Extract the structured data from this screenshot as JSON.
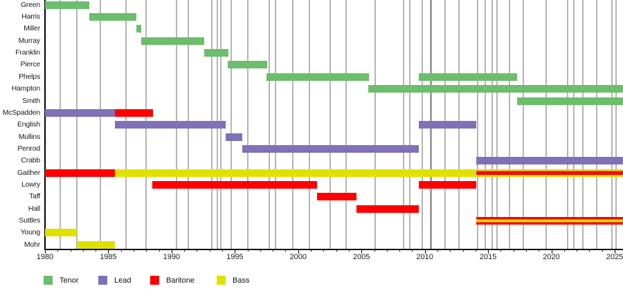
{
  "chart_data": {
    "type": "bar",
    "subtype": "gantt-timeline",
    "title": "",
    "xlabel": "",
    "ylabel": "",
    "x_axis": {
      "min": 1980,
      "max": 2025.7,
      "major_ticks": [
        1980,
        1985,
        1990,
        1995,
        2000,
        2005,
        2010,
        2015,
        2020,
        2025
      ],
      "minor_tick_step": 1
    },
    "legend": [
      {
        "label": "Tenor",
        "part": "tenor"
      },
      {
        "label": "Lead",
        "part": "lead"
      },
      {
        "label": "Baritone",
        "part": "baritone"
      },
      {
        "label": "Bass",
        "part": "bass"
      }
    ],
    "part_colors": {
      "tenor": "#6cbe6c",
      "lead": "#8070b8",
      "baritone": "#fd0000",
      "bass": "#e1e100"
    },
    "grid_color": "#b4b4b4",
    "thick_grid_color": "#9e9e9e",
    "gridline_years": [
      1981.2,
      1982.5,
      1984.4,
      1986.4,
      1988.0,
      1990.4,
      1991.3,
      1993.2,
      1993.6,
      1993.9,
      1994.7,
      1996.0,
      1997.7,
      1998.2,
      1999.6,
      2000.9,
      2002.5,
      2003.8,
      2006.1,
      2008.3,
      2008.8,
      2009.8,
      2011.6,
      2012.7,
      2014.2,
      2014.8,
      2015.3,
      2015.7,
      2016.7,
      2017.8,
      2019.6,
      2021.3,
      2021.8,
      2022.5,
      2023.6,
      2024.8,
      2025.1
    ],
    "thick_gridline_year": 2010.5,
    "members": [
      {
        "name": "Green",
        "segments": [
          {
            "start": 1980.0,
            "end": 1983.5,
            "parts": [
              "tenor"
            ]
          }
        ]
      },
      {
        "name": "Harris",
        "segments": [
          {
            "start": 1983.5,
            "end": 1987.2,
            "parts": [
              "tenor"
            ]
          }
        ]
      },
      {
        "name": "Miller",
        "segments": [
          {
            "start": 1987.2,
            "end": 1987.6,
            "parts": [
              "tenor"
            ]
          }
        ]
      },
      {
        "name": "Murray",
        "segments": [
          {
            "start": 1987.6,
            "end": 1992.55,
            "parts": [
              "tenor"
            ]
          }
        ]
      },
      {
        "name": "Franklin",
        "segments": [
          {
            "start": 1992.55,
            "end": 1994.5,
            "parts": [
              "tenor"
            ]
          }
        ]
      },
      {
        "name": "Pierce",
        "segments": [
          {
            "start": 1994.45,
            "end": 1997.55,
            "parts": [
              "tenor"
            ]
          }
        ]
      },
      {
        "name": "Phelps",
        "segments": [
          {
            "start": 1997.5,
            "end": 2005.6,
            "parts": [
              "tenor"
            ]
          },
          {
            "start": 2009.5,
            "end": 2017.3,
            "parts": [
              "tenor"
            ]
          }
        ]
      },
      {
        "name": "Hampton",
        "segments": [
          {
            "start": 2005.55,
            "end": 2025.7,
            "parts": [
              "tenor"
            ]
          }
        ]
      },
      {
        "name": "Smith",
        "segments": [
          {
            "start": 2017.3,
            "end": 2025.7,
            "parts": [
              "tenor"
            ]
          }
        ]
      },
      {
        "name": "McSpadden",
        "segments": [
          {
            "start": 1980.0,
            "end": 1985.5,
            "parts": [
              "lead"
            ]
          },
          {
            "start": 1985.5,
            "end": 1988.55,
            "parts": [
              "baritone"
            ]
          }
        ]
      },
      {
        "name": "English",
        "segments": [
          {
            "start": 1985.5,
            "end": 1994.25,
            "parts": [
              "lead"
            ]
          },
          {
            "start": 2009.5,
            "end": 2014.05,
            "parts": [
              "lead"
            ]
          }
        ]
      },
      {
        "name": "Mullins",
        "segments": [
          {
            "start": 1994.25,
            "end": 1995.6,
            "parts": [
              "lead"
            ]
          }
        ]
      },
      {
        "name": "Penrod",
        "segments": [
          {
            "start": 1995.6,
            "end": 2009.5,
            "parts": [
              "lead"
            ]
          }
        ]
      },
      {
        "name": "Crabb",
        "segments": [
          {
            "start": 2014.05,
            "end": 2025.7,
            "parts": [
              "lead"
            ]
          }
        ]
      },
      {
        "name": "Gaither",
        "segments": [
          {
            "start": 1980.0,
            "end": 1985.5,
            "parts": [
              "baritone"
            ]
          },
          {
            "start": 1985.5,
            "end": 2014.05,
            "parts": [
              "bass"
            ]
          },
          {
            "start": 2014.05,
            "end": 2025.7,
            "parts": [
              "bass",
              "baritone",
              "bass"
            ],
            "weights": [
              1,
              2,
              1
            ]
          }
        ]
      },
      {
        "name": "Lowry",
        "segments": [
          {
            "start": 1988.5,
            "end": 2001.5,
            "parts": [
              "baritone"
            ]
          },
          {
            "start": 2009.5,
            "end": 2014.05,
            "parts": [
              "baritone"
            ]
          }
        ]
      },
      {
        "name": "Taff",
        "segments": [
          {
            "start": 2001.5,
            "end": 2004.6,
            "parts": [
              "baritone"
            ]
          }
        ]
      },
      {
        "name": "Hall",
        "segments": [
          {
            "start": 2004.6,
            "end": 2009.5,
            "parts": [
              "baritone"
            ]
          }
        ]
      },
      {
        "name": "Suttles",
        "segments": [
          {
            "start": 2014.05,
            "end": 2025.7,
            "parts": [
              "baritone",
              "bass",
              "baritone"
            ],
            "weights": [
              1,
              1,
              1
            ]
          }
        ]
      },
      {
        "name": "Young",
        "segments": [
          {
            "start": 1980.0,
            "end": 1982.5,
            "parts": [
              "bass"
            ]
          }
        ]
      },
      {
        "name": "Mohr",
        "segments": [
          {
            "start": 1982.5,
            "end": 1985.5,
            "parts": [
              "bass"
            ]
          }
        ]
      }
    ]
  }
}
